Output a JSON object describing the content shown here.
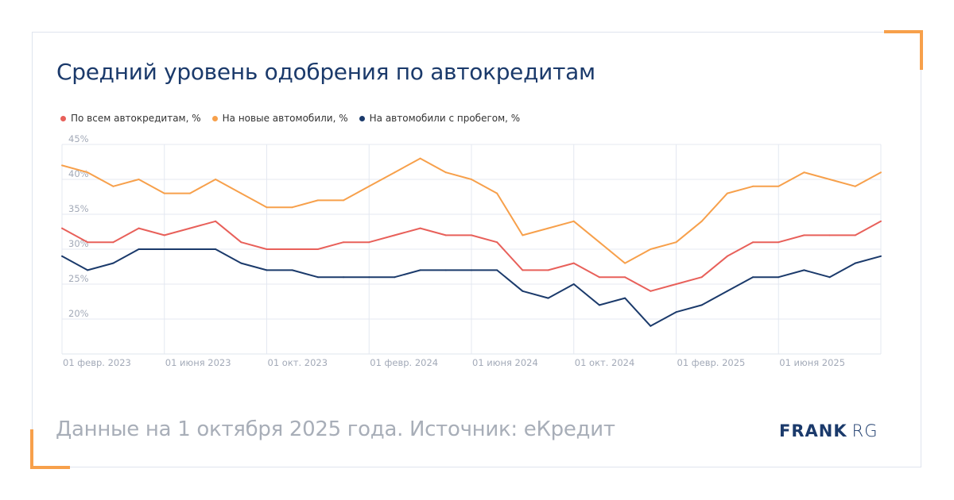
{
  "title": "Средний уровень одобрения по автокредитам",
  "footer": "Данные на 1 октября 2025 года. Источник: еКредит",
  "logo": {
    "brand": "FRANK",
    "suffix": "RG"
  },
  "colors": {
    "all": "#e8605a",
    "new": "#f7a04b",
    "used": "#1b3a6b",
    "accent": "#f7a04b"
  },
  "chart_data": {
    "type": "line",
    "title": "Средний уровень одобрения по автокредитам",
    "xlabel": "",
    "ylabel": "",
    "x_start": "01 февр. 2023",
    "x_end": "01 окт. 2025",
    "x_step": "month",
    "x_tick_labels": [
      {
        "index": 0,
        "label": "01 февр. 2023"
      },
      {
        "index": 4,
        "label": "01 июня 2023"
      },
      {
        "index": 8,
        "label": "01 окт. 2023"
      },
      {
        "index": 12,
        "label": "01 февр. 2024"
      },
      {
        "index": 16,
        "label": "01 июня 2024"
      },
      {
        "index": 20,
        "label": "01 окт. 2024"
      },
      {
        "index": 24,
        "label": "01 февр. 2025"
      },
      {
        "index": 28,
        "label": "01 июня 2025"
      }
    ],
    "y_ticks": [
      20,
      25,
      30,
      35,
      40,
      45
    ],
    "y_tick_labels": [
      "20%",
      "25%",
      "30%",
      "35%",
      "40%",
      "45%"
    ],
    "ylim": [
      15,
      45
    ],
    "grid": true,
    "legend_position": "top-left",
    "series": [
      {
        "name": "По всем автокредитам, %",
        "color": "#e8605a",
        "values": [
          33,
          31,
          31,
          33,
          32,
          33,
          34,
          31,
          30,
          30,
          30,
          31,
          31,
          32,
          33,
          32,
          32,
          31,
          27,
          27,
          28,
          26,
          26,
          24,
          25,
          26,
          29,
          31,
          31,
          32,
          32,
          32,
          34
        ]
      },
      {
        "name": "На новые автомобили, %",
        "color": "#f7a04b",
        "values": [
          42,
          41,
          39,
          40,
          38,
          38,
          40,
          38,
          36,
          36,
          37,
          37,
          39,
          41,
          43,
          41,
          40,
          38,
          32,
          33,
          34,
          31,
          28,
          30,
          31,
          34,
          38,
          39,
          39,
          41,
          40,
          39,
          41
        ]
      },
      {
        "name": "На автомобили с пробегом, %",
        "color": "#1b3a6b",
        "values": [
          29,
          27,
          28,
          30,
          30,
          30,
          30,
          28,
          27,
          27,
          26,
          26,
          26,
          26,
          27,
          27,
          27,
          27,
          24,
          23,
          25,
          22,
          23,
          19,
          21,
          22,
          24,
          26,
          26,
          27,
          26,
          28,
          29
        ]
      }
    ]
  }
}
